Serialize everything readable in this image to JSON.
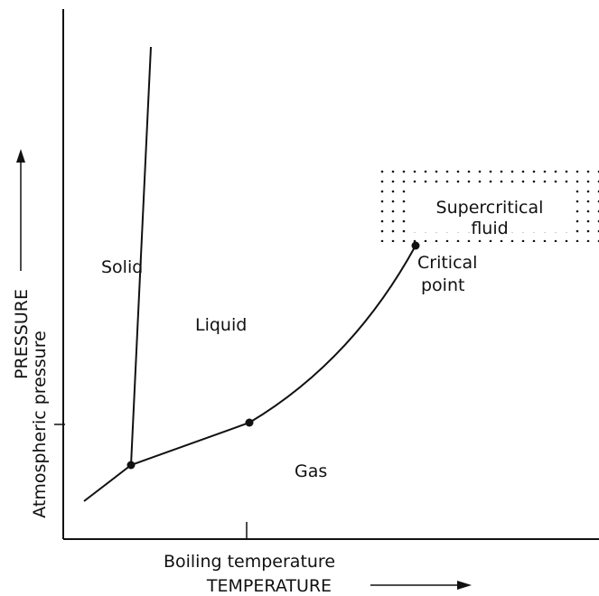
{
  "regions": {
    "solid": "Solid",
    "liquid": "Liquid",
    "gas": "Gas",
    "supercritical": [
      "Supercritical",
      "fluid"
    ]
  },
  "critical_point": [
    "Critical",
    "point"
  ],
  "axes": {
    "y_label": "PRESSURE",
    "y_tick_label": "Atmospheric pressure",
    "x_label": "TEMPERATURE",
    "x_tick_label": "Boiling temperature"
  }
}
